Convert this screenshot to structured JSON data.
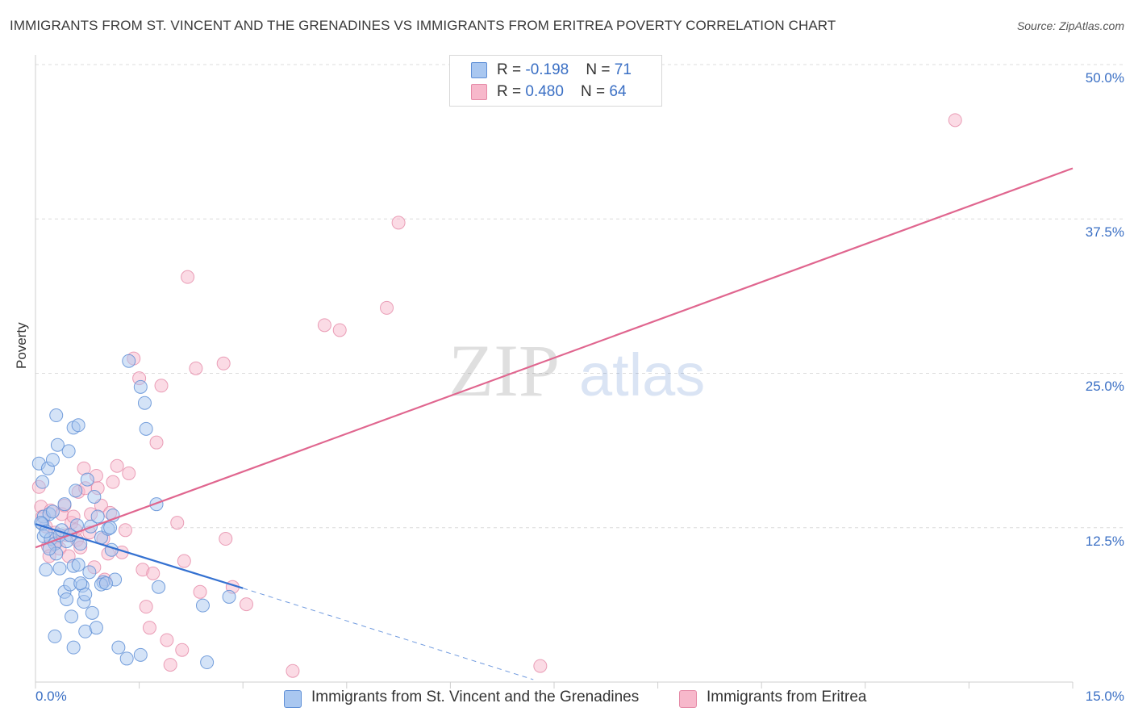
{
  "title": "IMMIGRANTS FROM ST. VINCENT AND THE GRENADINES VS IMMIGRANTS FROM ERITREA POVERTY CORRELATION CHART",
  "source": "Source: ZipAtlas.com",
  "watermark": {
    "zip": "ZIP",
    "atlas": "atlas"
  },
  "legend": {
    "rows": [
      {
        "r_label": "R = ",
        "r_value": "-0.198",
        "n_label": "N = ",
        "n_value": "71",
        "color": "#a9c7f0"
      },
      {
        "r_label": "R = ",
        "r_value": "0.480",
        "n_label": "N = ",
        "n_value": "64",
        "color": "#f7b8cb"
      }
    ]
  },
  "colors": {
    "blue_fill": "#a9c7f0",
    "blue_stroke": "#5f8fd6",
    "blue_line": "#3471d1",
    "pink_fill": "#f7b8cb",
    "pink_stroke": "#e58aa7",
    "pink_line": "#e0668f",
    "tick_text": "#3a6fc4",
    "grid": "#dcdcdc"
  },
  "chart_data": {
    "type": "scatter",
    "title": "IMMIGRANTS FROM ST. VINCENT AND THE GRENADINES VS IMMIGRANTS FROM ERITREA POVERTY CORRELATION CHART",
    "xlabel": "",
    "ylabel": "Poverty",
    "xlim": [
      0,
      15
    ],
    "ylim": [
      0,
      50
    ],
    "x_tick_labels": [
      "0.0%",
      "15.0%"
    ],
    "y_tick_values": [
      12.5,
      25,
      37.5,
      50
    ],
    "y_tick_labels": [
      "12.5%",
      "25.0%",
      "37.5%",
      "50.0%"
    ],
    "grid": true,
    "legend_position": "bottom",
    "series": [
      {
        "name": "Immigrants from St. Vincent and the Grenadines",
        "r": -0.198,
        "n": 71,
        "trend": {
          "x": [
            0.0,
            3.0
          ],
          "y": [
            12.8,
            7.6
          ]
        },
        "trend_extension": {
          "x": [
            3.0,
            7.2
          ],
          "y": [
            7.6,
            0.2
          ]
        },
        "points": [
          [
            0.05,
            17.7
          ],
          [
            0.1,
            16.2
          ],
          [
            0.12,
            13.4
          ],
          [
            0.1,
            12.8
          ],
          [
            0.18,
            17.3
          ],
          [
            0.25,
            18.0
          ],
          [
            0.32,
            19.2
          ],
          [
            0.3,
            21.6
          ],
          [
            0.48,
            18.7
          ],
          [
            0.55,
            20.6
          ],
          [
            0.62,
            20.8
          ],
          [
            0.12,
            11.8
          ],
          [
            0.15,
            9.1
          ],
          [
            0.2,
            13.6
          ],
          [
            0.22,
            11.6
          ],
          [
            0.28,
            11.2
          ],
          [
            0.3,
            10.4
          ],
          [
            0.35,
            11.9
          ],
          [
            0.38,
            12.3
          ],
          [
            0.42,
            14.4
          ],
          [
            0.45,
            11.4
          ],
          [
            0.5,
            11.9
          ],
          [
            0.55,
            9.4
          ],
          [
            0.58,
            15.5
          ],
          [
            0.6,
            12.7
          ],
          [
            0.62,
            9.5
          ],
          [
            0.65,
            11.2
          ],
          [
            0.68,
            7.8
          ],
          [
            0.7,
            6.5
          ],
          [
            0.72,
            7.1
          ],
          [
            0.75,
            16.4
          ],
          [
            0.78,
            8.9
          ],
          [
            0.8,
            12.6
          ],
          [
            0.85,
            15.0
          ],
          [
            0.9,
            13.4
          ],
          [
            0.95,
            11.7
          ],
          [
            0.98,
            8.1
          ],
          [
            1.05,
            12.4
          ],
          [
            1.1,
            10.7
          ],
          [
            1.12,
            13.5
          ],
          [
            1.15,
            8.3
          ],
          [
            0.35,
            9.2
          ],
          [
            0.42,
            7.3
          ],
          [
            0.45,
            6.7
          ],
          [
            0.5,
            7.9
          ],
          [
            0.52,
            5.3
          ],
          [
            0.55,
            2.8
          ],
          [
            0.28,
            3.7
          ],
          [
            0.65,
            8.0
          ],
          [
            0.72,
            4.1
          ],
          [
            0.82,
            5.6
          ],
          [
            0.88,
            4.4
          ],
          [
            0.95,
            7.9
          ],
          [
            1.02,
            8.0
          ],
          [
            1.08,
            12.5
          ],
          [
            1.35,
            26.0
          ],
          [
            1.52,
            23.9
          ],
          [
            1.58,
            22.6
          ],
          [
            1.6,
            20.5
          ],
          [
            1.75,
            14.4
          ],
          [
            1.2,
            2.8
          ],
          [
            1.32,
            1.9
          ],
          [
            1.52,
            2.2
          ],
          [
            1.78,
            7.7
          ],
          [
            2.42,
            6.2
          ],
          [
            2.48,
            1.6
          ],
          [
            2.8,
            6.9
          ],
          [
            0.08,
            12.9
          ],
          [
            0.15,
            12.2
          ],
          [
            0.2,
            10.8
          ],
          [
            0.25,
            13.8
          ]
        ]
      },
      {
        "name": "Immigrants from Eritrea",
        "r": 0.48,
        "n": 64,
        "trend": {
          "x": [
            0.0,
            15.0
          ],
          "y": [
            10.9,
            41.6
          ]
        },
        "points": [
          [
            0.05,
            15.8
          ],
          [
            0.08,
            14.2
          ],
          [
            0.1,
            13.4
          ],
          [
            0.15,
            12.6
          ],
          [
            0.18,
            11.0
          ],
          [
            0.2,
            10.2
          ],
          [
            0.22,
            13.9
          ],
          [
            0.28,
            12.1
          ],
          [
            0.3,
            11.3
          ],
          [
            0.35,
            10.8
          ],
          [
            0.38,
            13.6
          ],
          [
            0.42,
            14.3
          ],
          [
            0.45,
            11.9
          ],
          [
            0.48,
            10.2
          ],
          [
            0.52,
            12.9
          ],
          [
            0.55,
            13.4
          ],
          [
            0.58,
            12.3
          ],
          [
            0.6,
            11.5
          ],
          [
            0.62,
            15.4
          ],
          [
            0.65,
            10.9
          ],
          [
            0.7,
            17.3
          ],
          [
            0.72,
            15.7
          ],
          [
            0.78,
            12.1
          ],
          [
            0.8,
            13.6
          ],
          [
            0.85,
            9.3
          ],
          [
            0.88,
            16.7
          ],
          [
            0.9,
            15.7
          ],
          [
            0.95,
            14.3
          ],
          [
            0.98,
            11.6
          ],
          [
            1.0,
            8.3
          ],
          [
            1.05,
            10.4
          ],
          [
            1.08,
            13.7
          ],
          [
            1.12,
            16.2
          ],
          [
            1.18,
            17.5
          ],
          [
            1.25,
            10.5
          ],
          [
            1.3,
            12.3
          ],
          [
            1.35,
            16.9
          ],
          [
            1.42,
            26.2
          ],
          [
            1.5,
            24.6
          ],
          [
            1.55,
            9.1
          ],
          [
            1.6,
            6.1
          ],
          [
            1.65,
            4.4
          ],
          [
            1.7,
            8.8
          ],
          [
            1.75,
            19.4
          ],
          [
            1.82,
            24.0
          ],
          [
            1.9,
            3.4
          ],
          [
            1.95,
            1.4
          ],
          [
            2.05,
            12.9
          ],
          [
            2.12,
            2.6
          ],
          [
            2.15,
            9.8
          ],
          [
            2.2,
            32.8
          ],
          [
            2.32,
            25.4
          ],
          [
            2.38,
            7.3
          ],
          [
            2.72,
            25.8
          ],
          [
            2.75,
            11.6
          ],
          [
            2.85,
            7.7
          ],
          [
            3.05,
            6.3
          ],
          [
            3.72,
            0.9
          ],
          [
            4.18,
            28.9
          ],
          [
            4.4,
            28.5
          ],
          [
            5.08,
            30.3
          ],
          [
            5.25,
            37.2
          ],
          [
            7.3,
            1.3
          ],
          [
            13.3,
            45.5
          ]
        ]
      }
    ]
  },
  "bottom_legend": [
    {
      "label": "Immigrants from St. Vincent and the Grenadines",
      "color": "#a9c7f0"
    },
    {
      "label": "Immigrants from Eritrea",
      "color": "#f7b8cb"
    }
  ]
}
